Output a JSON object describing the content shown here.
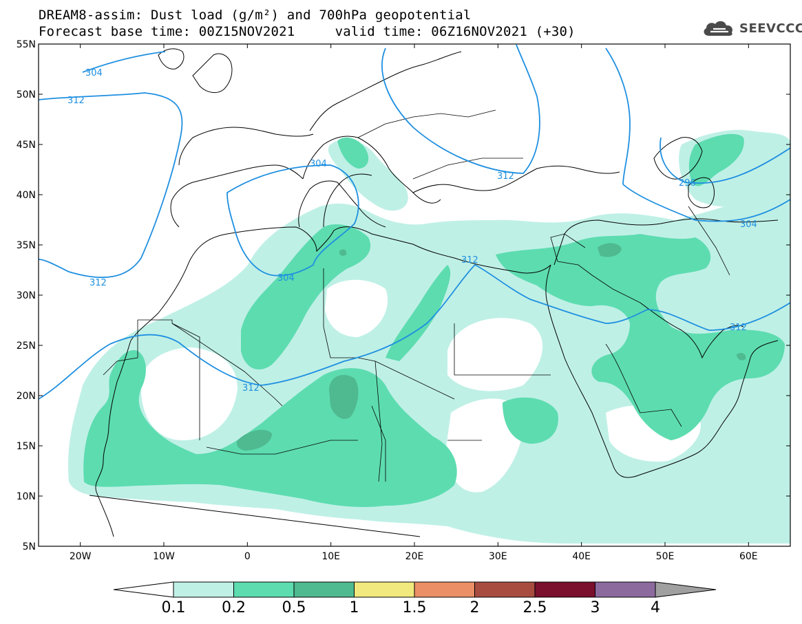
{
  "header": {
    "title_line1": "DREAM8-assim: Dust load (g/m²) and 700hPa geopotential",
    "title_line2": "Forecast base time: 00Z15NOV2021     valid time: 06Z16NOV2021 (+30)"
  },
  "logo": {
    "text": "SEEVCCC",
    "icon": "cloud-icon"
  },
  "map": {
    "lon_range": [
      -25,
      65
    ],
    "lat_range": [
      5,
      55
    ],
    "lon_ticks": [
      {
        "lon": -20,
        "label": "20W"
      },
      {
        "lon": -10,
        "label": "10W"
      },
      {
        "lon": 0,
        "label": "0"
      },
      {
        "lon": 10,
        "label": "10E"
      },
      {
        "lon": 20,
        "label": "20E"
      },
      {
        "lon": 30,
        "label": "30E"
      },
      {
        "lon": 40,
        "label": "40E"
      },
      {
        "lon": 50,
        "label": "50E"
      },
      {
        "lon": 60,
        "label": "60E"
      }
    ],
    "lat_ticks": [
      {
        "lat": 55,
        "label": "55N"
      },
      {
        "lat": 50,
        "label": "50N"
      },
      {
        "lat": 45,
        "label": "45N"
      },
      {
        "lat": 40,
        "label": "40N"
      },
      {
        "lat": 35,
        "label": "35N"
      },
      {
        "lat": 30,
        "label": "30N"
      },
      {
        "lat": 25,
        "label": "25N"
      },
      {
        "lat": 20,
        "label": "20N"
      },
      {
        "lat": 15,
        "label": "15N"
      },
      {
        "lat": 10,
        "label": "10N"
      },
      {
        "lat": 5,
        "label": "5N"
      }
    ],
    "contour_labels": [
      "304",
      "312",
      "312",
      "304",
      "304",
      "312",
      "312",
      "296",
      "304",
      "312",
      "312"
    ],
    "colors": {
      "geopotential_line": "#1e8fe0",
      "coastline": "#000000",
      "level_1": "#bff0e6",
      "level_2": "#5ddcb0",
      "level_3": "#4fb990"
    }
  },
  "colorbar": {
    "labels": [
      "0.1",
      "0.2",
      "0.5",
      "1",
      "1.5",
      "2",
      "2.5",
      "3",
      "4"
    ],
    "colors": [
      "#bff0e6",
      "#5ddcb0",
      "#4fb990",
      "#f2e97e",
      "#eb8f66",
      "#a84c40",
      "#7a0f2e",
      "#8c6a9e"
    ],
    "under_color": "#ffffff",
    "over_color": "#a0a0a0"
  }
}
